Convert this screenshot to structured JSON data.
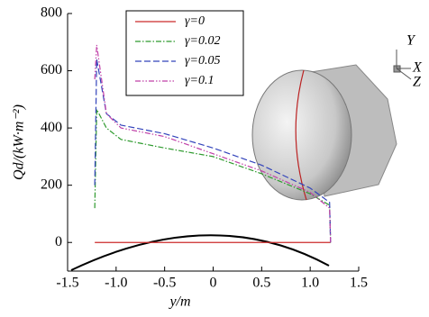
{
  "chart_data": {
    "type": "line",
    "x_label": "y/m",
    "y_label": "Qd/(kW·m⁻²)",
    "x": [
      -1.22,
      -1.2,
      -1.1,
      -0.95,
      -0.5,
      0,
      0.5,
      1.0,
      1.2,
      1.21
    ],
    "series": [
      {
        "name": "γ=0",
        "color": "#cc2a2a",
        "dash": "none",
        "values": [
          0,
          0,
          0,
          0,
          0,
          0,
          0,
          0,
          0,
          0
        ]
      },
      {
        "name": "γ=0.02",
        "color": "#2e9a2e",
        "dash": "6 2 1.5 2",
        "values": [
          120,
          465,
          400,
          360,
          330,
          300,
          240,
          170,
          130,
          0
        ]
      },
      {
        "name": "γ=0.05",
        "color": "#3344bb",
        "dash": "7 3",
        "values": [
          200,
          640,
          450,
          410,
          380,
          330,
          270,
          190,
          140,
          0
        ]
      },
      {
        "name": "γ=0.1",
        "color": "#c040a8",
        "dash": "6 2 1.5 2 1.5 2",
        "values": [
          570,
          690,
          450,
          400,
          370,
          310,
          250,
          175,
          120,
          0
        ]
      }
    ],
    "xlim": [
      -1.5,
      1.5
    ],
    "ylim": [
      -100,
      800
    ],
    "xticks": [
      -1.5,
      {
        "value": -1,
        "label": "-1.0"
      },
      -0.5,
      0,
      0.5,
      {
        "value": 1,
        "label": "1.0"
      },
      1.5
    ],
    "yticks": [
      0,
      200,
      400,
      600,
      800
    ],
    "annotations": [
      "Y",
      "X",
      "Z"
    ]
  }
}
